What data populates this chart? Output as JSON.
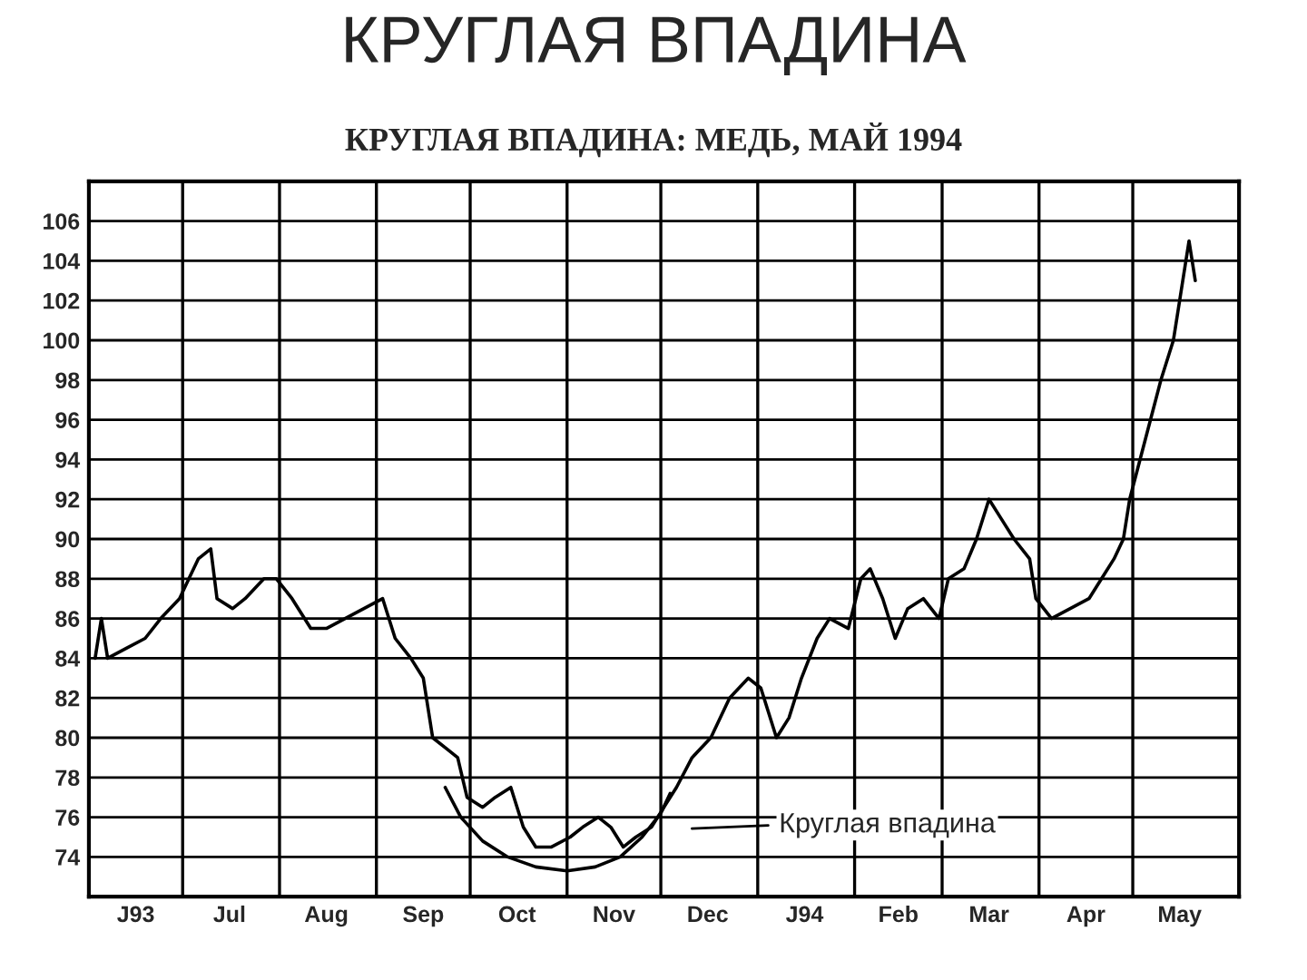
{
  "chart_data": {
    "type": "line",
    "title": "КРУГЛАЯ ВПАДИНА",
    "subtitle": "КРУГЛАЯ ВПАДИНА: МЕДЬ, МАЙ 1994",
    "x": [
      "1993-06-03",
      "1993-06-05",
      "1993-06-07",
      "1993-06-13",
      "1993-06-19",
      "1993-06-24",
      "1993-06-30",
      "1993-07-03",
      "1993-07-06",
      "1993-07-10",
      "1993-07-12",
      "1993-07-17",
      "1993-07-21",
      "1993-07-27",
      "1993-07-31",
      "1993-08-05",
      "1993-08-11",
      "1993-08-16",
      "1993-08-22",
      "1993-08-28",
      "1993-09-03",
      "1993-09-07",
      "1993-09-12",
      "1993-09-16",
      "1993-09-19",
      "1993-09-23",
      "1993-09-27",
      "1993-09-30",
      "1993-10-05",
      "1993-10-09",
      "1993-10-14",
      "1993-10-18",
      "1993-10-22",
      "1993-10-27",
      "1993-11-02",
      "1993-11-06",
      "1993-11-11",
      "1993-11-15",
      "1993-11-19",
      "1993-11-23",
      "1993-11-28",
      "1993-12-02",
      "1993-12-06",
      "1993-12-11",
      "1993-12-17",
      "1993-12-23",
      "1993-12-29",
      "1994-01-02",
      "1994-01-07",
      "1994-01-11",
      "1994-01-15",
      "1994-01-20",
      "1994-01-24",
      "1994-01-30",
      "1994-02-03",
      "1994-02-06",
      "1994-02-10",
      "1994-02-14",
      "1994-02-18",
      "1994-02-23",
      "1994-02-28",
      "1994-03-03",
      "1994-03-08",
      "1994-03-12",
      "1994-03-16",
      "1994-03-20",
      "1994-03-24",
      "1994-03-29",
      "1994-03-31",
      "1994-04-05",
      "1994-04-11",
      "1994-04-17",
      "1994-04-21",
      "1994-04-25",
      "1994-04-28",
      "1994-04-30",
      "1994-05-05",
      "1994-05-10",
      "1994-05-14",
      "1994-05-17",
      "1994-05-19",
      "1994-05-21"
    ],
    "series": [
      {
        "color": "#000000",
        "values": [
          84,
          86,
          84,
          84.5,
          85,
          86,
          87,
          88,
          89,
          89.5,
          87,
          86.5,
          87,
          88,
          88,
          87,
          85.5,
          85.5,
          86,
          86.5,
          87,
          85,
          84,
          83,
          80,
          79.5,
          79,
          77,
          76.5,
          77,
          77.5,
          75.5,
          74.5,
          74.5,
          75,
          75.5,
          76,
          75.5,
          74.5,
          75,
          75.5,
          76.5,
          77.5,
          79,
          80,
          82,
          83,
          82.5,
          80,
          81,
          83,
          85,
          86,
          85.5,
          88,
          88.5,
          87,
          85,
          86.5,
          87,
          86,
          88,
          88.5,
          90,
          92,
          91,
          90,
          89,
          87,
          86,
          86.5,
          87,
          88,
          89,
          90,
          92,
          95,
          98,
          100,
          103,
          105,
          103
        ]
      },
      {
        "type": "line",
        "color": "#000000",
        "x": [
          "1993-09-23",
          "1993-09-28",
          "1993-10-05",
          "1993-10-13",
          "1993-10-22",
          "1993-11-01",
          "1993-11-10",
          "1993-11-18",
          "1993-11-25",
          "1993-12-01",
          "1993-12-04"
        ],
        "values": [
          77.5,
          76,
          74.8,
          74,
          73.5,
          73.3,
          73.5,
          74,
          75,
          76.2,
          77.2
        ]
      }
    ],
    "xlim": [
      "1993-06-01",
      "1994-06-04"
    ],
    "xticks": [
      {
        "value": "1993-06-01",
        "label": null
      },
      {
        "value": "1993-06-16",
        "label": "J93"
      },
      {
        "value": "1993-07-01",
        "label": null
      },
      {
        "value": "1993-07-16",
        "label": "Jul"
      },
      {
        "value": "1993-08-01",
        "label": null
      },
      {
        "value": "1993-08-16",
        "label": "Aug"
      },
      {
        "value": "1993-09-01",
        "label": null
      },
      {
        "value": "1993-09-16",
        "label": "Sep"
      },
      {
        "value": "1993-10-01",
        "label": null
      },
      {
        "value": "1993-10-16",
        "label": "Oct"
      },
      {
        "value": "1993-11-01",
        "label": null
      },
      {
        "value": "1993-11-16",
        "label": "Nov"
      },
      {
        "value": "1993-12-01",
        "label": null
      },
      {
        "value": "1993-12-16",
        "label": "Dec"
      },
      {
        "value": "1994-01-01",
        "label": null
      },
      {
        "value": "1994-01-16",
        "label": "J94"
      },
      {
        "value": "1994-02-01",
        "label": null
      },
      {
        "value": "1994-02-15",
        "label": "Feb"
      },
      {
        "value": "1994-03-01",
        "label": null
      },
      {
        "value": "1994-03-16",
        "label": "Mar"
      },
      {
        "value": "1994-04-01",
        "label": null
      },
      {
        "value": "1994-04-16",
        "label": "Apr"
      },
      {
        "value": "1994-05-01",
        "label": null
      },
      {
        "value": "1994-05-16",
        "label": "May"
      }
    ],
    "ylim": [
      72,
      108
    ],
    "yticks": [
      74,
      76,
      78,
      80,
      82,
      84,
      86,
      88,
      90,
      92,
      94,
      96,
      98,
      100,
      102,
      104,
      106
    ],
    "grid": true,
    "marker": "none",
    "line_style": "solid",
    "annotations": [
      "Круглая впадина"
    ]
  }
}
